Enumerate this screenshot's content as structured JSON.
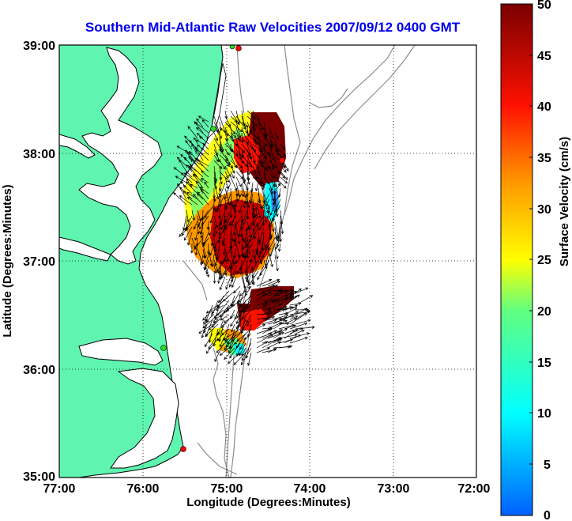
{
  "map": {
    "title": "Southern Mid-Atlantic Raw Velocities 2007/09/12 0400 GMT",
    "xlabel": "Longitude (Degrees:Minutes)",
    "ylabel": "Latitude (Degrees:Minutes)",
    "x_ticks": [
      "77:00",
      "76:00",
      "75:00",
      "74:00",
      "73:00",
      "72:00"
    ],
    "y_ticks": [
      "39:00",
      "38:00",
      "37:00",
      "36:00",
      "35:00"
    ],
    "lon_range": [
      -77,
      -72
    ],
    "lat_range": [
      35,
      39
    ],
    "grid": "dotted",
    "land_color": "#5ff5b0",
    "coastline_color": "#000000",
    "bathymetry_color": "#8c8c8c",
    "station_color": "#ff0000",
    "station_alt_color": "#22dd22"
  },
  "colorbar": {
    "label": "Surface Velocity (cm/s)",
    "ticks": [
      "50",
      "45",
      "40",
      "35",
      "30",
      "25",
      "20",
      "15",
      "10",
      "5",
      "0"
    ],
    "range": [
      0,
      50
    ],
    "placement": "right"
  }
}
